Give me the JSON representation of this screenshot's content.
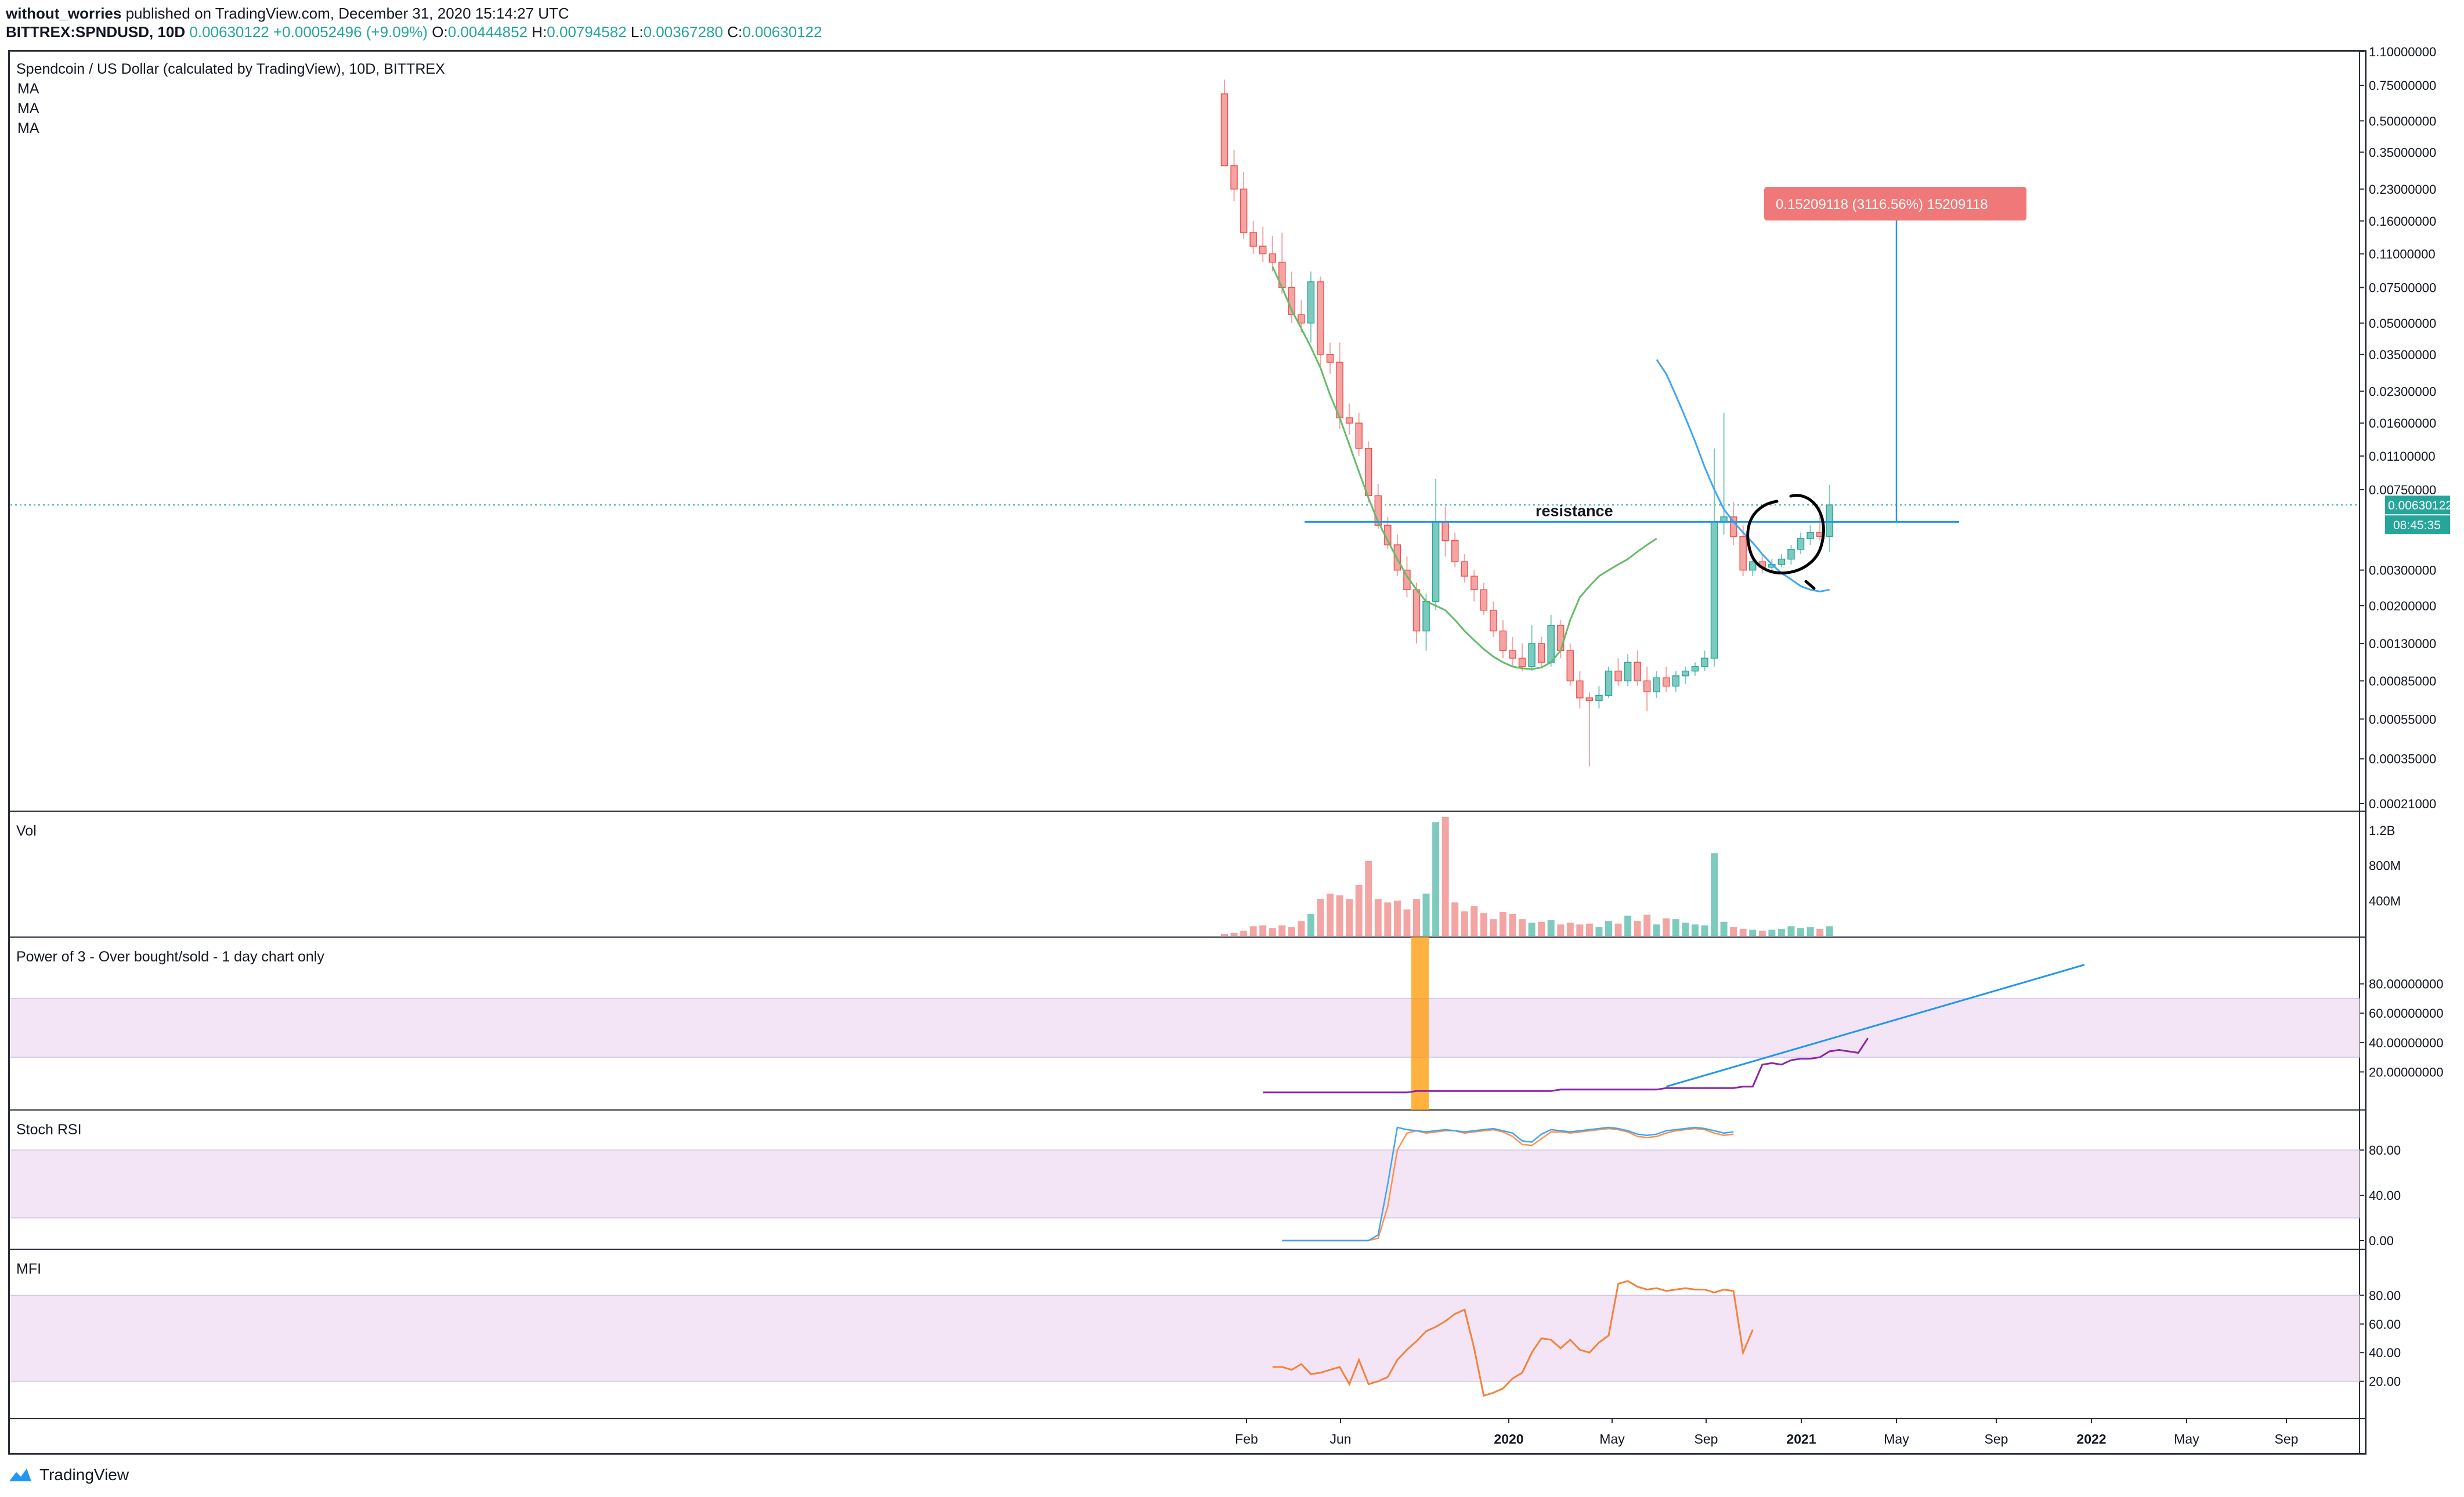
{
  "header": {
    "author": "without_worries",
    "published_text": " published on TradingView.com, December 31, 2020 15:14:27 UTC",
    "symbol": "BITTREX:SPNDUSD, 10D",
    "last": "0.00630122",
    "change": "+0.00052496 (+9.09%)",
    "open_label": "O:",
    "open": "0.00444852",
    "high_label": "H:",
    "high": "0.00794582",
    "low_label": "L:",
    "low": "0.00367280",
    "close_label": "C:",
    "close": "0.00630122"
  },
  "brand": {
    "name": "TradingView"
  },
  "colors": {
    "up": "#26a69a",
    "down": "#ef5350",
    "up_soft": "#7dcbbf",
    "down_soft": "#f3a5a3",
    "ma_green": "#66bb6a",
    "ma_blue": "#42a5f5",
    "line_blue": "#2196f3",
    "purple": "#8e24aa",
    "orange": "#ff9800",
    "stoch_k": "#42a5f5",
    "stoch_d": "#ff9149",
    "mfi": "#f5823b",
    "band": "#f3e5f5",
    "label_red": "#f07878",
    "grid_border": "#2a2e39"
  },
  "chart_data": [
    {
      "type": "candlestick",
      "pane": "price",
      "title": "Spendcoin / US Dollar (calculated by TradingView), 10D, BITTREX",
      "legend": [
        "MA",
        "MA",
        "MA"
      ],
      "y_scale": "log",
      "ylim": [
        0.00021,
        1.1
      ],
      "y_ticks": [
        "1.10000000",
        "0.75000000",
        "0.50000000",
        "0.35000000",
        "0.23000000",
        "0.16000000",
        "0.11000000",
        "0.07500000",
        "0.05000000",
        "0.03500000",
        "0.02300000",
        "0.01600000",
        "0.01100000",
        "0.00750000",
        "0.00630122",
        "0.00300000",
        "0.00200000",
        "0.00130000",
        "0.00085000",
        "0.00055000",
        "0.00035000",
        "0.00021000"
      ],
      "x_ticks": [
        "Feb",
        "Jun",
        "2020",
        "May",
        "Sep",
        "2021",
        "May",
        "Sep",
        "2022",
        "May",
        "Sep"
      ],
      "price_label": "0.00630122",
      "countdown_label": "08:45:35",
      "candles": [
        {
          "o": 0.68,
          "h": 0.8,
          "l": 0.3,
          "c": 0.3
        },
        {
          "o": 0.3,
          "h": 0.36,
          "l": 0.2,
          "c": 0.23
        },
        {
          "o": 0.23,
          "h": 0.28,
          "l": 0.13,
          "c": 0.14
        },
        {
          "o": 0.14,
          "h": 0.16,
          "l": 0.11,
          "c": 0.12
        },
        {
          "o": 0.12,
          "h": 0.15,
          "l": 0.1,
          "c": 0.11
        },
        {
          "o": 0.11,
          "h": 0.135,
          "l": 0.09,
          "c": 0.1
        },
        {
          "o": 0.1,
          "h": 0.14,
          "l": 0.07,
          "c": 0.075
        },
        {
          "o": 0.075,
          "h": 0.09,
          "l": 0.05,
          "c": 0.055
        },
        {
          "o": 0.055,
          "h": 0.065,
          "l": 0.045,
          "c": 0.05
        },
        {
          "o": 0.05,
          "h": 0.09,
          "l": 0.04,
          "c": 0.08
        },
        {
          "o": 0.08,
          "h": 0.085,
          "l": 0.03,
          "c": 0.035
        },
        {
          "o": 0.035,
          "h": 0.04,
          "l": 0.028,
          "c": 0.032
        },
        {
          "o": 0.032,
          "h": 0.04,
          "l": 0.015,
          "c": 0.017
        },
        {
          "o": 0.017,
          "h": 0.02,
          "l": 0.014,
          "c": 0.016
        },
        {
          "o": 0.016,
          "h": 0.018,
          "l": 0.011,
          "c": 0.012
        },
        {
          "o": 0.012,
          "h": 0.013,
          "l": 0.0065,
          "c": 0.007
        },
        {
          "o": 0.007,
          "h": 0.008,
          "l": 0.0048,
          "c": 0.005
        },
        {
          "o": 0.005,
          "h": 0.0055,
          "l": 0.0038,
          "c": 0.004
        },
        {
          "o": 0.004,
          "h": 0.0045,
          "l": 0.0028,
          "c": 0.003
        },
        {
          "o": 0.003,
          "h": 0.0035,
          "l": 0.0022,
          "c": 0.0024
        },
        {
          "o": 0.0024,
          "h": 0.0026,
          "l": 0.0013,
          "c": 0.0015
        },
        {
          "o": 0.0015,
          "h": 0.0023,
          "l": 0.0012,
          "c": 0.0021
        },
        {
          "o": 0.0021,
          "h": 0.0085,
          "l": 0.0019,
          "c": 0.0052
        },
        {
          "o": 0.0052,
          "h": 0.0062,
          "l": 0.0035,
          "c": 0.0042
        },
        {
          "o": 0.0042,
          "h": 0.0046,
          "l": 0.0031,
          "c": 0.0033
        },
        {
          "o": 0.0033,
          "h": 0.0036,
          "l": 0.0026,
          "c": 0.0028
        },
        {
          "o": 0.0028,
          "h": 0.003,
          "l": 0.0021,
          "c": 0.0024
        },
        {
          "o": 0.0024,
          "h": 0.0026,
          "l": 0.0018,
          "c": 0.0019
        },
        {
          "o": 0.0019,
          "h": 0.0021,
          "l": 0.0014,
          "c": 0.0015
        },
        {
          "o": 0.0015,
          "h": 0.0017,
          "l": 0.0011,
          "c": 0.0012
        },
        {
          "o": 0.0012,
          "h": 0.0014,
          "l": 0.001,
          "c": 0.0011
        },
        {
          "o": 0.0011,
          "h": 0.0013,
          "l": 0.00095,
          "c": 0.001
        },
        {
          "o": 0.001,
          "h": 0.0016,
          "l": 0.00095,
          "c": 0.0013
        },
        {
          "o": 0.0013,
          "h": 0.0014,
          "l": 0.001,
          "c": 0.00105
        },
        {
          "o": 0.00105,
          "h": 0.0018,
          "l": 0.001,
          "c": 0.0016
        },
        {
          "o": 0.0016,
          "h": 0.0017,
          "l": 0.0011,
          "c": 0.0012
        },
        {
          "o": 0.0012,
          "h": 0.0013,
          "l": 0.0008,
          "c": 0.00085
        },
        {
          "o": 0.00085,
          "h": 0.00095,
          "l": 0.00062,
          "c": 0.0007
        },
        {
          "o": 0.0007,
          "h": 0.00075,
          "l": 0.00032,
          "c": 0.00068
        },
        {
          "o": 0.00068,
          "h": 0.0008,
          "l": 0.00062,
          "c": 0.00072
        },
        {
          "o": 0.00072,
          "h": 0.001,
          "l": 0.0007,
          "c": 0.00095
        },
        {
          "o": 0.00095,
          "h": 0.0011,
          "l": 0.0008,
          "c": 0.00085
        },
        {
          "o": 0.00085,
          "h": 0.00115,
          "l": 0.0008,
          "c": 0.00105
        },
        {
          "o": 0.00105,
          "h": 0.0012,
          "l": 0.0008,
          "c": 0.00085
        },
        {
          "o": 0.00085,
          "h": 0.001,
          "l": 0.0006,
          "c": 0.00075
        },
        {
          "o": 0.00075,
          "h": 0.00095,
          "l": 0.0007,
          "c": 0.00088
        },
        {
          "o": 0.00088,
          "h": 0.001,
          "l": 0.00075,
          "c": 0.0008
        },
        {
          "o": 0.0008,
          "h": 0.00095,
          "l": 0.00075,
          "c": 0.0009
        },
        {
          "o": 0.0009,
          "h": 0.001,
          "l": 0.00082,
          "c": 0.00095
        },
        {
          "o": 0.00095,
          "h": 0.00105,
          "l": 0.0009,
          "c": 0.001
        },
        {
          "o": 0.001,
          "h": 0.0012,
          "l": 0.00095,
          "c": 0.0011
        },
        {
          "o": 0.0011,
          "h": 0.012,
          "l": 0.001,
          "c": 0.0052
        },
        {
          "o": 0.0052,
          "h": 0.018,
          "l": 0.0045,
          "c": 0.0055
        },
        {
          "o": 0.0055,
          "h": 0.0065,
          "l": 0.004,
          "c": 0.0044
        },
        {
          "o": 0.0044,
          "h": 0.005,
          "l": 0.0028,
          "c": 0.003
        },
        {
          "o": 0.003,
          "h": 0.0035,
          "l": 0.0028,
          "c": 0.0033
        },
        {
          "o": 0.0033,
          "h": 0.0036,
          "l": 0.0029,
          "c": 0.0031
        },
        {
          "o": 0.0031,
          "h": 0.0034,
          "l": 0.0029,
          "c": 0.0032
        },
        {
          "o": 0.0032,
          "h": 0.0036,
          "l": 0.0031,
          "c": 0.0034
        },
        {
          "o": 0.0034,
          "h": 0.004,
          "l": 0.0032,
          "c": 0.0038
        },
        {
          "o": 0.0038,
          "h": 0.0046,
          "l": 0.0036,
          "c": 0.0043
        },
        {
          "o": 0.0043,
          "h": 0.005,
          "l": 0.004,
          "c": 0.0046
        },
        {
          "o": 0.0046,
          "h": 0.0062,
          "l": 0.0042,
          "c": 0.0044
        },
        {
          "o": 0.0044,
          "h": 0.0079,
          "l": 0.0037,
          "c": 0.0063
        }
      ],
      "ma_green": [
        0.095,
        0.075,
        0.058,
        0.047,
        0.038,
        0.03,
        0.022,
        0.017,
        0.0125,
        0.0092,
        0.0068,
        0.0052,
        0.0042,
        0.0034,
        0.0028,
        0.0024,
        0.0021,
        0.002,
        0.0019,
        0.0017,
        0.0015,
        0.00135,
        0.00122,
        0.00112,
        0.00105,
        0.001,
        0.00098,
        0.00097,
        0.00099,
        0.00105,
        0.0012,
        0.0017,
        0.0022,
        0.0025,
        0.0028,
        0.003,
        0.0032,
        0.0034,
        0.0037,
        0.004,
        0.0043
      ],
      "ma_blue": [
        0.033,
        0.028,
        0.022,
        0.017,
        0.013,
        0.0097,
        0.0075,
        0.006,
        0.0052,
        0.0046,
        0.0041,
        0.0036,
        0.0032,
        0.0029,
        0.0027,
        0.0025,
        0.0024,
        0.00235,
        0.0024
      ],
      "annotations": {
        "resistance_label": "resistance",
        "resistance_level": 0.0052,
        "target_label": "0.15209118 (3116.56%) 15209118",
        "target_level": 0.155
      }
    },
    {
      "type": "bar",
      "pane": "volume",
      "title": "Vol",
      "y_ticks": [
        "1.2B",
        "800M",
        "400M"
      ],
      "ylim": [
        0,
        1350000000
      ],
      "values": [
        20,
        35,
        60,
        110,
        120,
        90,
        120,
        100,
        170,
        250,
        420,
        480,
        460,
        420,
        580,
        850,
        420,
        380,
        400,
        300,
        420,
        480,
        1290,
        1350,
        380,
        280,
        340,
        260,
        190,
        270,
        250,
        190,
        150,
        160,
        180,
        130,
        150,
        130,
        140,
        100,
        170,
        140,
        230,
        170,
        240,
        130,
        200,
        190,
        150,
        130,
        120,
        940,
        160,
        100,
        80,
        70,
        60,
        70,
        80,
        110,
        90,
        100,
        80,
        110
      ],
      "values_unit": "M"
    },
    {
      "type": "line",
      "pane": "power3",
      "title": "Power of 3 - Over bought/sold - 1 day chart only",
      "y_ticks": [
        "80.00000000",
        "60.00000000",
        "40.00000000",
        "20.00000000"
      ],
      "ylim": [
        0,
        100
      ],
      "band": [
        30,
        70
      ],
      "highlight_label": "",
      "series": [
        {
          "values": [
            6,
            6,
            6,
            6,
            6,
            6,
            6,
            6,
            6,
            6,
            6,
            6,
            6,
            6,
            6,
            6,
            7,
            7,
            7,
            7,
            7,
            7,
            7,
            7,
            7,
            7,
            7,
            7,
            7,
            7,
            7,
            8,
            8,
            8,
            8,
            8,
            8,
            8,
            8,
            8,
            8,
            8,
            9,
            9,
            9,
            9,
            9,
            9,
            9,
            9,
            10,
            10,
            25,
            26,
            25,
            28,
            29,
            29,
            30,
            34,
            35,
            34,
            33,
            43
          ]
        }
      ],
      "trendline": [
        [
          0.0,
          10
        ],
        [
          1.0,
          93
        ]
      ]
    },
    {
      "type": "line",
      "pane": "stoch",
      "title": "Stoch RSI",
      "y_ticks": [
        "80.00",
        "40.00",
        "0.00"
      ],
      "ylim": [
        0,
        100
      ],
      "band": [
        20,
        80
      ],
      "series": [
        {
          "values": [
            0,
            0,
            0,
            0,
            0,
            0,
            0,
            0,
            0,
            0,
            5,
            50,
            100,
            98,
            97,
            96,
            97,
            98,
            97,
            96,
            97,
            98,
            99,
            97,
            95,
            88,
            87,
            94,
            98,
            97,
            96,
            97,
            98,
            99,
            100,
            99,
            97,
            94,
            93,
            94,
            97,
            98,
            99,
            100,
            99,
            97,
            95,
            96
          ]
        },
        {
          "values": [
            0,
            0,
            0,
            0,
            0,
            0,
            0,
            0,
            0,
            0,
            2,
            30,
            80,
            95,
            97,
            95,
            96,
            97,
            97,
            95,
            96,
            97,
            98,
            96,
            92,
            85,
            84,
            90,
            96,
            96,
            95,
            96,
            97,
            98,
            99,
            98,
            96,
            92,
            91,
            92,
            95,
            97,
            98,
            99,
            98,
            95,
            93,
            94
          ]
        }
      ]
    },
    {
      "type": "line",
      "pane": "mfi",
      "title": "MFI",
      "y_ticks": [
        "80.00",
        "60.00",
        "40.00",
        "20.00"
      ],
      "ylim": [
        0,
        100
      ],
      "band": [
        20,
        80
      ],
      "series": [
        {
          "values": [
            30,
            30,
            28,
            32,
            25,
            26,
            28,
            30,
            18,
            35,
            18,
            20,
            23,
            35,
            42,
            48,
            55,
            58,
            62,
            67,
            70,
            43,
            10,
            12,
            15,
            22,
            26,
            40,
            50,
            49,
            43,
            49,
            42,
            40,
            47,
            52,
            88,
            90,
            86,
            84,
            85,
            83,
            84,
            85,
            84,
            84,
            82,
            84,
            83,
            40,
            56
          ]
        }
      ]
    }
  ]
}
